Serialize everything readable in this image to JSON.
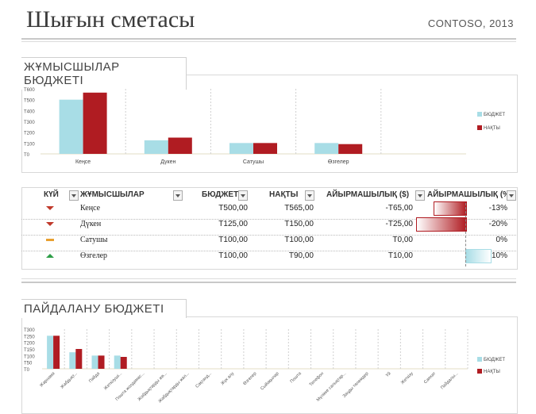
{
  "header": {
    "title": "Шығын сметасы",
    "company": "CONTOSO, 2013"
  },
  "staff_budget": {
    "section_title": "ЖҰМЫСШЫЛАР БЮДЖЕТІ",
    "chart_data": {
      "type": "bar",
      "categories": [
        "Кеңсе",
        "Дүкен",
        "Сатушы",
        "Өзгелер"
      ],
      "series": [
        {
          "name": "БЮДЖЕТ",
          "values": [
            500,
            125,
            100,
            100
          ]
        },
        {
          "name": "НАҚТЫ",
          "values": [
            565,
            150,
            100,
            90
          ]
        }
      ],
      "yticks": [
        "Т600",
        "Т500",
        "Т400",
        "Т300",
        "Т200",
        "Т100",
        "Т0"
      ],
      "ylim": [
        0,
        600
      ],
      "legend": "right",
      "colors": {
        "БЮДЖЕТ": "#a8dde6",
        "НАҚТЫ": "#b01c22"
      }
    }
  },
  "table": {
    "headers": {
      "state": "КҮЙ",
      "staff": "ЖҰМЫСШЫЛАР",
      "budget": "БЮДЖЕТ",
      "actual": "НАҚТЫ",
      "diff": "АЙЫРМАШЫЛЫҚ ($)",
      "diff_pct": "АЙЫРМАШЫЛЫҚ (%)"
    },
    "rows": [
      {
        "state": "down",
        "staff": "Кеңсе",
        "budget": "Т500,00",
        "actual": "Т565,00",
        "diff": "-Т65,00",
        "diff_pct": "-13%",
        "pct_value": -13
      },
      {
        "state": "down",
        "staff": "Дүкен",
        "budget": "Т125,00",
        "actual": "Т150,00",
        "diff": "-Т25,00",
        "diff_pct": "-20%",
        "pct_value": -20
      },
      {
        "state": "flat",
        "staff": "Сатушы",
        "budget": "Т100,00",
        "actual": "Т100,00",
        "diff": "Т0,00",
        "diff_pct": "0%",
        "pct_value": 0
      },
      {
        "state": "up",
        "staff": "Өзгелер",
        "budget": "Т100,00",
        "actual": "Т90,00",
        "diff": "Т10,00",
        "diff_pct": "10%",
        "pct_value": 10
      }
    ]
  },
  "operating_budget": {
    "section_title": "ПАЙДАЛАНУ БЮДЖЕТІ",
    "chart_data": {
      "type": "bar",
      "categories": [
        "Жарнама",
        "Жабдықтар",
        "Пайда",
        "Жеткізушілер",
        "Пошта жолдамасы",
        "Жабдықтарды жөндеу",
        "Жабдықтарды жалға алу",
        "Сақтандыру",
        "Жүк алу",
        "Өзгелер",
        "Сыйақылар",
        "Пошта",
        "Телефон",
        "Мүлікке салынатын салықтар",
        "Заңды төлемдер",
        "Үй",
        "Жеткізу",
        "Саяхат",
        "Пайдалы қызметтер"
      ],
      "category_labels_visible": [
        "Жарнама",
        "Жабдықт...",
        "Пайда",
        "Жеткізуші...",
        "Пошта жолдамас...",
        "Жабдықтарды жө...",
        "Жабдықтарды жал...",
        "Сақтанд...",
        "Жүк алу",
        "Өзгелер",
        "Сыйақылар",
        "Пошта",
        "Телефон",
        "Мүлікке салықтар...",
        "Заңды төлемдер",
        "Үй",
        "Жеткізу",
        "Саяхат",
        "Пайдалы..."
      ],
      "series": [
        {
          "name": "БЮДЖЕТ",
          "values": [
            250,
            125,
            100,
            100,
            0,
            0,
            0,
            0,
            0,
            0,
            0,
            0,
            0,
            0,
            0,
            0,
            0,
            0,
            0
          ]
        },
        {
          "name": "НАҚТЫ",
          "values": [
            250,
            150,
            100,
            90,
            0,
            0,
            0,
            0,
            0,
            0,
            0,
            0,
            0,
            0,
            0,
            0,
            0,
            0,
            0
          ]
        }
      ],
      "yticks": [
        "Т300",
        "Т250",
        "Т200",
        "Т150",
        "Т100",
        "Т50",
        "Т0"
      ],
      "ylim": [
        0,
        300
      ],
      "legend": "right",
      "colors": {
        "БЮДЖЕТ": "#a8dde6",
        "НАҚТЫ": "#b01c22"
      }
    }
  }
}
